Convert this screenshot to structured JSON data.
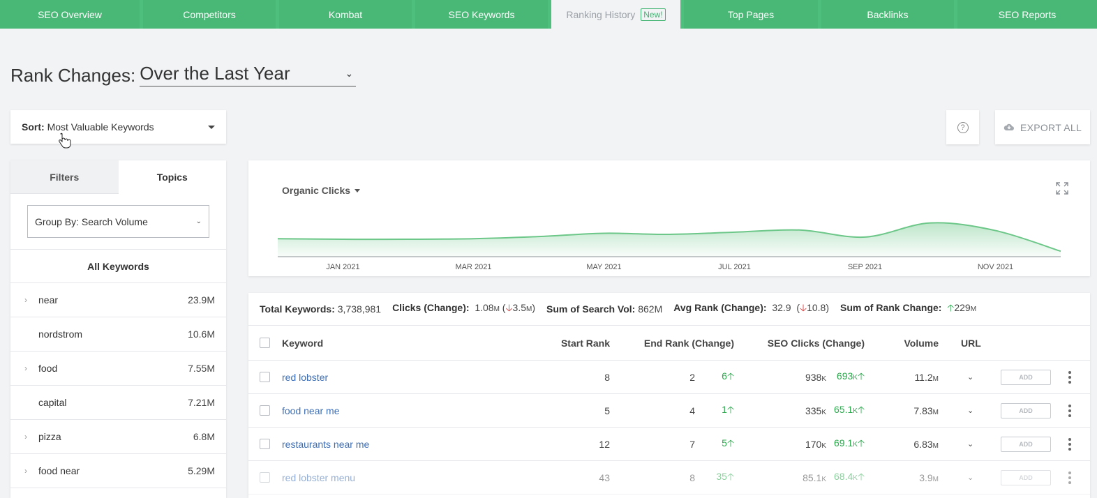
{
  "tabs": [
    {
      "label": "SEO Overview",
      "active": false
    },
    {
      "label": "Competitors",
      "active": false
    },
    {
      "label": "Kombat",
      "active": false
    },
    {
      "label": "SEO Keywords",
      "active": false
    },
    {
      "label": "Ranking History",
      "active": true,
      "badge": "New!"
    },
    {
      "label": "Top Pages",
      "active": false
    },
    {
      "label": "Backlinks",
      "active": false
    },
    {
      "label": "SEO Reports",
      "active": false
    }
  ],
  "heading": {
    "prefix": "Rank Changes:",
    "period": "Over the Last Year"
  },
  "sort": {
    "label": "Sort:",
    "value": "Most Valuable Keywords"
  },
  "export_label": "EXPORT ALL",
  "help_glyph": "?",
  "sidebar": {
    "tabs": [
      "Filters",
      "Topics"
    ],
    "active_tab": "Topics",
    "group_by": "Group By: Search Volume",
    "all_keywords": "All Keywords",
    "topics": [
      {
        "name": "near",
        "value": "23.9M",
        "expandable": true
      },
      {
        "name": "nordstrom",
        "value": "10.6M",
        "expandable": false
      },
      {
        "name": "food",
        "value": "7.55M",
        "expandable": true
      },
      {
        "name": "capital",
        "value": "7.21M",
        "expandable": false
      },
      {
        "name": "pizza",
        "value": "6.8M",
        "expandable": true
      },
      {
        "name": "food near",
        "value": "5.29M",
        "expandable": true
      }
    ]
  },
  "chart": {
    "metric": "Organic Clicks",
    "accent": "#6cc788",
    "x_labels": [
      "JAN 2021",
      "MAR 2021",
      "MAY 2021",
      "JUL 2021",
      "SEP 2021",
      "NOV 2021"
    ]
  },
  "chart_data": {
    "type": "area",
    "title": "Organic Clicks",
    "x": [
      "Dec 2020",
      "Jan 2021",
      "Feb 2021",
      "Mar 2021",
      "Apr 2021",
      "May 2021",
      "Jun 2021",
      "Jul 2021",
      "Aug 2021",
      "Sep 2021",
      "Oct 2021",
      "Nov 2021",
      "Dec 2021"
    ],
    "values": [
      0.33,
      0.32,
      0.32,
      0.33,
      0.37,
      0.43,
      0.41,
      0.45,
      0.49,
      0.36,
      0.62,
      0.48,
      0.1
    ],
    "xlabel": "",
    "ylabel": "",
    "x_ticks": [
      "JAN 2021",
      "MAR 2021",
      "MAY 2021",
      "JUL 2021",
      "SEP 2021",
      "NOV 2021"
    ],
    "grid": false
  },
  "summary": {
    "total_keywords_label": "Total Keywords:",
    "total_keywords": "3,738,981",
    "clicks_label": "Clicks (Change):",
    "clicks": "1.08",
    "clicks_unit": "M",
    "clicks_change": "3.5",
    "clicks_change_unit": "M",
    "search_vol_label": "Sum of Search Vol:",
    "search_vol": "862M",
    "avg_rank_label": "Avg Rank (Change):",
    "avg_rank": "32.9",
    "avg_rank_change": "10.8",
    "rank_change_label": "Sum of Rank Change:",
    "rank_change": "229",
    "rank_change_unit": "M"
  },
  "table": {
    "headers": {
      "keyword": "Keyword",
      "start_rank": "Start Rank",
      "end_rank": "End Rank (Change)",
      "clicks": "SEO Clicks (Change)",
      "volume": "Volume",
      "url": "URL"
    },
    "add_label": "ADD",
    "rows": [
      {
        "keyword": "red lobster",
        "start": "8",
        "end": "2",
        "end_change": "6",
        "clicks": "938",
        "clicks_unit": "K",
        "clicks_change": "693",
        "clicks_change_unit": "K",
        "volume": "11.2",
        "volume_unit": "M"
      },
      {
        "keyword": "food near me",
        "start": "5",
        "end": "4",
        "end_change": "1",
        "clicks": "335",
        "clicks_unit": "K",
        "clicks_change": "65.1",
        "clicks_change_unit": "K",
        "volume": "7.83",
        "volume_unit": "M"
      },
      {
        "keyword": "restaurants near me",
        "start": "12",
        "end": "7",
        "end_change": "5",
        "clicks": "170",
        "clicks_unit": "K",
        "clicks_change": "69.1",
        "clicks_change_unit": "K",
        "volume": "6.83",
        "volume_unit": "M"
      },
      {
        "keyword": "red lobster menu",
        "start": "43",
        "end": "8",
        "end_change": "35",
        "clicks": "85.1",
        "clicks_unit": "K",
        "clicks_change": "68.4",
        "clicks_change_unit": "K",
        "volume": "3.9",
        "volume_unit": "M"
      }
    ]
  }
}
